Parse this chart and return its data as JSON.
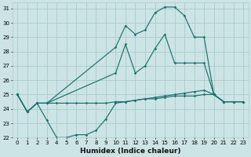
{
  "xlabel": "Humidex (Indice chaleur)",
  "bg_color": "#cde4e4",
  "grid_color": "#aacccc",
  "line_color": "#1a7070",
  "xlim": [
    -0.5,
    23.5
  ],
  "ylim": [
    22,
    31.4
  ],
  "x_ticks": [
    0,
    1,
    2,
    3,
    4,
    5,
    6,
    7,
    8,
    9,
    10,
    11,
    12,
    13,
    14,
    15,
    16,
    17,
    18,
    19,
    20,
    21,
    22,
    23
  ],
  "y_ticks": [
    22,
    23,
    24,
    25,
    26,
    27,
    28,
    29,
    30,
    31
  ],
  "series": {
    "line_peak": {
      "x": [
        0,
        1,
        2,
        3,
        10,
        11,
        12,
        13,
        14,
        15,
        16,
        17,
        18,
        19,
        20,
        21,
        22,
        23
      ],
      "y": [
        25.0,
        23.8,
        24.4,
        24.4,
        28.3,
        29.8,
        29.2,
        29.5,
        30.7,
        31.1,
        31.1,
        30.5,
        29.0,
        29.0,
        25.0,
        24.5,
        24.5,
        24.5
      ]
    },
    "line_mid": {
      "x": [
        0,
        1,
        2,
        3,
        10,
        11,
        12,
        13,
        14,
        15,
        16,
        17,
        18,
        19,
        20,
        21,
        22,
        23
      ],
      "y": [
        25.0,
        23.8,
        24.4,
        24.4,
        26.5,
        28.5,
        26.5,
        27.0,
        28.2,
        29.2,
        27.2,
        27.2,
        27.2,
        27.2,
        25.0,
        24.5,
        24.5,
        24.5
      ]
    },
    "line_dip": {
      "x": [
        0,
        1,
        2,
        3,
        4,
        5,
        6,
        7,
        8,
        9,
        10,
        11,
        12,
        13,
        14,
        15,
        16,
        17,
        18,
        19,
        20,
        21,
        22,
        23
      ],
      "y": [
        25.0,
        23.8,
        24.4,
        23.2,
        22.0,
        22.0,
        22.2,
        22.2,
        22.5,
        23.3,
        24.4,
        24.5,
        24.6,
        24.7,
        24.8,
        24.9,
        25.0,
        25.1,
        25.2,
        25.3,
        25.0,
        24.5,
        24.5,
        24.5
      ]
    },
    "line_flat": {
      "x": [
        0,
        1,
        2,
        3,
        4,
        5,
        6,
        7,
        8,
        9,
        10,
        11,
        12,
        13,
        14,
        15,
        16,
        17,
        18,
        19,
        20,
        21,
        22,
        23
      ],
      "y": [
        25.0,
        23.8,
        24.4,
        24.4,
        24.4,
        24.4,
        24.4,
        24.4,
        24.4,
        24.4,
        24.5,
        24.5,
        24.6,
        24.7,
        24.7,
        24.8,
        24.9,
        24.9,
        24.9,
        25.0,
        25.0,
        24.5,
        24.5,
        24.5
      ]
    }
  }
}
